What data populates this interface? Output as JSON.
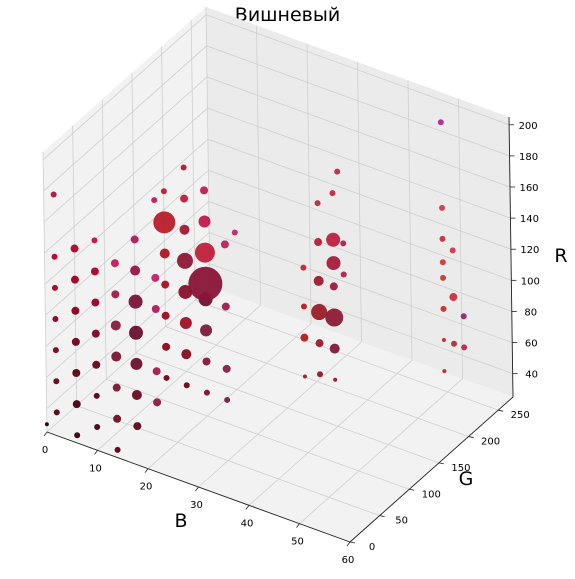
{
  "chart_data": {
    "type": "scatter",
    "projection": "3d",
    "title": "Вишневый",
    "xlabel": "B",
    "ylabel": "G",
    "zlabel": "R",
    "xlim": [
      0,
      60
    ],
    "ylim": [
      0,
      275
    ],
    "zlim": [
      25,
      205
    ],
    "xticks": [
      0,
      10,
      20,
      30,
      40,
      50,
      60
    ],
    "yticks": [
      0,
      50,
      100,
      150,
      200,
      250
    ],
    "zticks": [
      40,
      60,
      80,
      100,
      120,
      140,
      160,
      180,
      200
    ],
    "grid": true,
    "points": [
      {
        "x": 0,
        "y": 0,
        "z": 30,
        "size": 2,
        "color": "#220008"
      },
      {
        "x": 2,
        "y": 0,
        "z": 40,
        "size": 3,
        "color": "#5a0010"
      },
      {
        "x": 2,
        "y": 0,
        "z": 60,
        "size": 3,
        "color": "#6a0014"
      },
      {
        "x": 2,
        "y": 0,
        "z": 80,
        "size": 3,
        "color": "#7a001a"
      },
      {
        "x": 2,
        "y": 0,
        "z": 100,
        "size": 3,
        "color": "#8a0020"
      },
      {
        "x": 2,
        "y": 0,
        "z": 120,
        "size": 3,
        "color": "#a00024"
      },
      {
        "x": 2,
        "y": 0,
        "z": 140,
        "size": 3,
        "color": "#b00028"
      },
      {
        "x": 2,
        "y": 0,
        "z": 180,
        "size": 3,
        "color": "#b0103a"
      },
      {
        "x": 6,
        "y": 0,
        "z": 30,
        "size": 3,
        "color": "#3a0006"
      },
      {
        "x": 6,
        "y": 0,
        "z": 50,
        "size": 4,
        "color": "#4a000a"
      },
      {
        "x": 6,
        "y": 0,
        "z": 70,
        "size": 4,
        "color": "#5e0010"
      },
      {
        "x": 6,
        "y": 0,
        "z": 90,
        "size": 4,
        "color": "#720016"
      },
      {
        "x": 6,
        "y": 0,
        "z": 110,
        "size": 4,
        "color": "#88001c"
      },
      {
        "x": 6,
        "y": 0,
        "z": 130,
        "size": 4,
        "color": "#9e0022"
      },
      {
        "x": 6,
        "y": 0,
        "z": 150,
        "size": 4,
        "color": "#b40028"
      },
      {
        "x": 10,
        "y": 0,
        "z": 40,
        "size": 3,
        "color": "#44000a"
      },
      {
        "x": 10,
        "y": 0,
        "z": 60,
        "size": 3,
        "color": "#58000e"
      },
      {
        "x": 10,
        "y": 0,
        "z": 80,
        "size": 4,
        "color": "#6e0016"
      },
      {
        "x": 10,
        "y": 0,
        "z": 100,
        "size": 4,
        "color": "#84001c"
      },
      {
        "x": 10,
        "y": 0,
        "z": 120,
        "size": 4,
        "color": "#980024"
      },
      {
        "x": 10,
        "y": 0,
        "z": 140,
        "size": 4,
        "color": "#ac0028"
      },
      {
        "x": 10,
        "y": 0,
        "z": 160,
        "size": 3,
        "color": "#c0104a"
      },
      {
        "x": 14,
        "y": 0,
        "z": 30,
        "size": 3,
        "color": "#5a0010"
      },
      {
        "x": 14,
        "y": 0,
        "z": 50,
        "size": 4,
        "color": "#6a1020"
      },
      {
        "x": 14,
        "y": 0,
        "z": 70,
        "size": 4,
        "color": "#7a1430"
      },
      {
        "x": 14,
        "y": 0,
        "z": 90,
        "size": 5,
        "color": "#7c1436"
      },
      {
        "x": 14,
        "y": 0,
        "z": 110,
        "size": 5,
        "color": "#8a1a40"
      },
      {
        "x": 14,
        "y": 0,
        "z": 130,
        "size": 4,
        "color": "#a01a4c"
      },
      {
        "x": 14,
        "y": 0,
        "z": 150,
        "size": 4,
        "color": "#c01a5a"
      },
      {
        "x": 18,
        "y": 0,
        "z": 50,
        "size": 4,
        "color": "#5a0a16"
      },
      {
        "x": 18,
        "y": 0,
        "z": 70,
        "size": 5,
        "color": "#6a0a20"
      },
      {
        "x": 18,
        "y": 0,
        "z": 90,
        "size": 6,
        "color": "#6e1030"
      },
      {
        "x": 18,
        "y": 0,
        "z": 110,
        "size": 7,
        "color": "#6a1030"
      },
      {
        "x": 18,
        "y": 0,
        "z": 130,
        "size": 7,
        "color": "#7a1238"
      },
      {
        "x": 18,
        "y": 0,
        "z": 150,
        "size": 5,
        "color": "#9a1444"
      },
      {
        "x": 18,
        "y": 0,
        "z": 170,
        "size": 4,
        "color": "#b01a5a"
      },
      {
        "x": 22,
        "y": 0,
        "z": 70,
        "size": 4,
        "color": "#8a1a4a"
      },
      {
        "x": 22,
        "y": 0,
        "z": 90,
        "size": 4,
        "color": "#a01a50"
      },
      {
        "x": 22,
        "y": 0,
        "z": 130,
        "size": 4,
        "color": "#b01a5a"
      },
      {
        "x": 22,
        "y": 0,
        "z": 150,
        "size": 4,
        "color": "#c0206a"
      },
      {
        "x": 22,
        "y": 0,
        "z": 200,
        "size": 3,
        "color": "#c01a5a"
      },
      {
        "x": 12,
        "y": 100,
        "z": 40,
        "size": 3,
        "color": "#7a0016"
      },
      {
        "x": 12,
        "y": 100,
        "z": 60,
        "size": 4,
        "color": "#8a0a1a"
      },
      {
        "x": 12,
        "y": 100,
        "z": 80,
        "size": 4,
        "color": "#9a0c20"
      },
      {
        "x": 12,
        "y": 100,
        "z": 100,
        "size": 4,
        "color": "#a8101c"
      },
      {
        "x": 12,
        "y": 100,
        "z": 120,
        "size": 5,
        "color": "#b0141e"
      },
      {
        "x": 12,
        "y": 100,
        "z": 140,
        "size": 11,
        "color": "#b81c2a"
      },
      {
        "x": 12,
        "y": 100,
        "z": 160,
        "size": 3,
        "color": "#c01a2a"
      },
      {
        "x": 16,
        "y": 100,
        "z": 40,
        "size": 3,
        "color": "#6e0014"
      },
      {
        "x": 16,
        "y": 100,
        "z": 60,
        "size": 5,
        "color": "#8a0a1e"
      },
      {
        "x": 16,
        "y": 100,
        "z": 80,
        "size": 6,
        "color": "#a01024"
      },
      {
        "x": 16,
        "y": 100,
        "z": 100,
        "size": 7,
        "color": "#8a1026"
      },
      {
        "x": 16,
        "y": 100,
        "z": 120,
        "size": 8,
        "color": "#8c1834"
      },
      {
        "x": 16,
        "y": 100,
        "z": 140,
        "size": 5,
        "color": "#a01a30"
      },
      {
        "x": 16,
        "y": 100,
        "z": 160,
        "size": 4,
        "color": "#c01a34"
      },
      {
        "x": 16,
        "y": 100,
        "z": 180,
        "size": 3,
        "color": "#b01a30"
      },
      {
        "x": 20,
        "y": 100,
        "z": 40,
        "size": 3,
        "color": "#7a1030"
      },
      {
        "x": 20,
        "y": 100,
        "z": 60,
        "size": 4,
        "color": "#801a3a"
      },
      {
        "x": 20,
        "y": 100,
        "z": 80,
        "size": 6,
        "color": "#7c1a3c"
      },
      {
        "x": 20,
        "y": 100,
        "z": 100,
        "size": 7,
        "color": "#6e1430"
      },
      {
        "x": 20,
        "y": 100,
        "z": 110,
        "size": 17,
        "color": "#8a1438"
      },
      {
        "x": 20,
        "y": 100,
        "z": 130,
        "size": 10,
        "color": "#c0203a"
      },
      {
        "x": 20,
        "y": 100,
        "z": 150,
        "size": 6,
        "color": "#c01a4a"
      },
      {
        "x": 20,
        "y": 100,
        "z": 170,
        "size": 4,
        "color": "#c01a5a"
      },
      {
        "x": 24,
        "y": 100,
        "z": 40,
        "size": 3,
        "color": "#7a1a44"
      },
      {
        "x": 24,
        "y": 100,
        "z": 60,
        "size": 4,
        "color": "#8a1a4a"
      },
      {
        "x": 24,
        "y": 100,
        "z": 100,
        "size": 4,
        "color": "#9a1c50"
      },
      {
        "x": 24,
        "y": 100,
        "z": 140,
        "size": 4,
        "color": "#c01e5e"
      },
      {
        "x": 26,
        "y": 100,
        "z": 150,
        "size": 3,
        "color": "#c0266a"
      },
      {
        "x": 30,
        "y": 180,
        "z": 35,
        "size": 2,
        "color": "#a01a1a"
      },
      {
        "x": 30,
        "y": 180,
        "z": 60,
        "size": 4,
        "color": "#b01c1e"
      },
      {
        "x": 30,
        "y": 180,
        "z": 80,
        "size": 3,
        "color": "#b8201e"
      },
      {
        "x": 30,
        "y": 180,
        "z": 105,
        "size": 3,
        "color": "#c02a2a"
      },
      {
        "x": 33,
        "y": 180,
        "z": 40,
        "size": 3,
        "color": "#8a1a30"
      },
      {
        "x": 33,
        "y": 180,
        "z": 60,
        "size": 4,
        "color": "#9a1a2c"
      },
      {
        "x": 33,
        "y": 180,
        "z": 80,
        "size": 8,
        "color": "#9a1c28"
      },
      {
        "x": 33,
        "y": 180,
        "z": 100,
        "size": 5,
        "color": "#a01a2c"
      },
      {
        "x": 33,
        "y": 180,
        "z": 125,
        "size": 4,
        "color": "#b81c34"
      },
      {
        "x": 33,
        "y": 180,
        "z": 150,
        "size": 3,
        "color": "#c02a3a"
      },
      {
        "x": 36,
        "y": 180,
        "z": 40,
        "size": 2,
        "color": "#8a1a3a"
      },
      {
        "x": 36,
        "y": 180,
        "z": 60,
        "size": 5,
        "color": "#801a3a"
      },
      {
        "x": 36,
        "y": 180,
        "z": 80,
        "size": 9,
        "color": "#8c1c34"
      },
      {
        "x": 36,
        "y": 180,
        "z": 100,
        "size": 4,
        "color": "#a01a3a"
      },
      {
        "x": 36,
        "y": 180,
        "z": 115,
        "size": 7,
        "color": "#a81c3c"
      },
      {
        "x": 36,
        "y": 180,
        "z": 130,
        "size": 7,
        "color": "#c02040"
      },
      {
        "x": 36,
        "y": 180,
        "z": 160,
        "size": 3,
        "color": "#c02a44"
      },
      {
        "x": 37,
        "y": 180,
        "z": 175,
        "size": 3,
        "color": "#c02a44"
      },
      {
        "x": 38,
        "y": 180,
        "z": 110,
        "size": 3,
        "color": "#b81c50"
      },
      {
        "x": 38,
        "y": 180,
        "z": 130,
        "size": 3,
        "color": "#b0205c"
      },
      {
        "x": 50,
        "y": 245,
        "z": 40,
        "size": 2,
        "color": "#b82a2a"
      },
      {
        "x": 50,
        "y": 245,
        "z": 60,
        "size": 2,
        "color": "#c02a2a"
      },
      {
        "x": 50,
        "y": 245,
        "z": 80,
        "size": 3,
        "color": "#c8302a"
      },
      {
        "x": 50,
        "y": 245,
        "z": 100,
        "size": 3,
        "color": "#c83a3a"
      },
      {
        "x": 50,
        "y": 245,
        "z": 110,
        "size": 3,
        "color": "#d03a3a"
      },
      {
        "x": 50,
        "y": 245,
        "z": 125,
        "size": 3,
        "color": "#c8303a"
      },
      {
        "x": 50,
        "y": 245,
        "z": 145,
        "size": 3,
        "color": "#d03a48"
      },
      {
        "x": 52,
        "y": 245,
        "z": 60,
        "size": 3,
        "color": "#b82a3a"
      },
      {
        "x": 52,
        "y": 245,
        "z": 90,
        "size": 4,
        "color": "#c8303e"
      },
      {
        "x": 52,
        "y": 245,
        "z": 120,
        "size": 3,
        "color": "#d03a4a"
      },
      {
        "x": 54,
        "y": 245,
        "z": 60,
        "size": 3,
        "color": "#b82a4a"
      },
      {
        "x": 54,
        "y": 245,
        "z": 80,
        "size": 3,
        "color": "#a0206a"
      },
      {
        "x": 50,
        "y": 245,
        "z": 200,
        "size": 3,
        "color": "#b02a9a"
      }
    ]
  }
}
